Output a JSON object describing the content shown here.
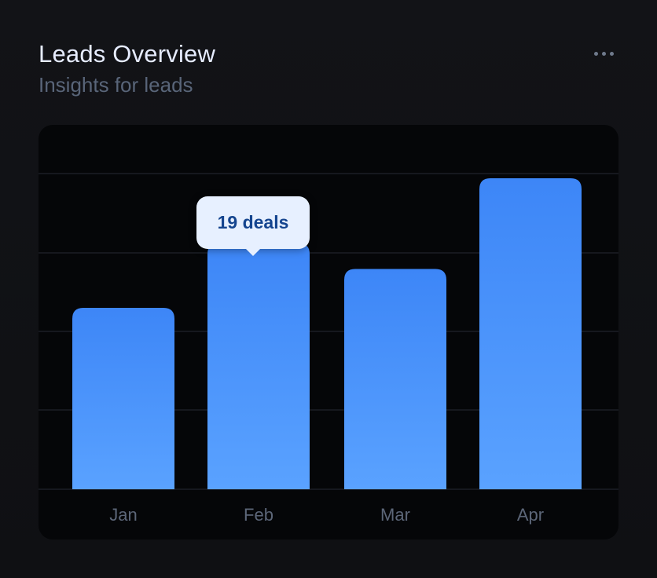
{
  "header": {
    "title": "Leads Overview",
    "subtitle": "Insights for leads"
  },
  "menu": {
    "icon": "more-horizontal-icon"
  },
  "tooltip": {
    "text": "19 deals"
  },
  "colors": {
    "bar_top": "#3d86f7",
    "bar_bottom": "#5aa2ff",
    "gridline": "#1c1f26",
    "tooltip_bg": "#e7f0ff",
    "tooltip_text": "#15458f"
  },
  "chart_data": {
    "type": "bar",
    "categories": [
      "Jan",
      "Feb",
      "Mar",
      "Apr"
    ],
    "values": [
      14,
      19,
      17,
      24
    ],
    "ylim": [
      0,
      28
    ],
    "grid": true,
    "highlighted_category": "Feb"
  }
}
